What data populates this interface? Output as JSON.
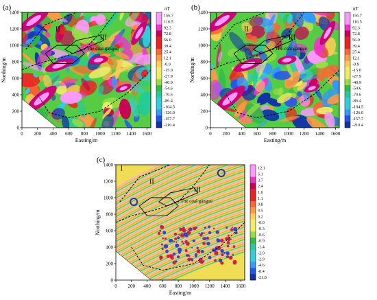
{
  "chart_data": [
    {
      "type": "heatmap",
      "panel_label": "(a)",
      "xlabel": "Easting/m",
      "ylabel": "Northing/m",
      "x_ticks": [
        0,
        200,
        400,
        600,
        800,
        1000,
        1200,
        1400,
        1600
      ],
      "y_ticks": [
        0,
        200,
        400,
        600,
        800,
        1000,
        1200,
        1400
      ],
      "xlim": [
        0,
        1650
      ],
      "ylim": [
        0,
        1400
      ],
      "colorbar_unit": "nT",
      "colorbar_labels": [
        "156.7",
        "116.5",
        "92.3",
        "72.8",
        "56.0",
        "39.4",
        "25.4",
        "12.1",
        "-0.9",
        "-15.0",
        "-27.9",
        "-40.9",
        "-54.6",
        "-70.6",
        "-86.4",
        "-104.5",
        "-126.0",
        "-157.7",
        "-210.4"
      ],
      "annotations": [
        "I",
        "II",
        "III",
        "The coal gangue"
      ],
      "legend": "none",
      "grid": false
    },
    {
      "type": "heatmap",
      "panel_label": "(b)",
      "xlabel": "Easting/m",
      "ylabel": "Northing/m",
      "x_ticks": [
        0,
        200,
        400,
        600,
        800,
        1000,
        1200,
        1400,
        1600
      ],
      "y_ticks": [
        0,
        200,
        400,
        600,
        800,
        1000,
        1200,
        1400
      ],
      "xlim": [
        0,
        1650
      ],
      "ylim": [
        0,
        1400
      ],
      "colorbar_unit": "nT",
      "colorbar_labels": [
        "156.7",
        "116.5",
        "92.3",
        "72.8",
        "56.0",
        "39.4",
        "25.4",
        "12.1",
        "-0.9",
        "-15.0",
        "-27.9",
        "-40.9",
        "-54.6",
        "-70.6",
        "-86.4",
        "-104.5",
        "-126.0",
        "-157.7",
        "-210.4"
      ],
      "annotations": [
        "I",
        "II",
        "III",
        "The coal gangue"
      ],
      "legend": "none",
      "grid": false
    },
    {
      "type": "heatmap",
      "panel_label": "(c)",
      "xlabel": "Easting/m",
      "ylabel": "Northing/m",
      "x_ticks": [
        0,
        200,
        400,
        600,
        800,
        1000,
        1200,
        1400,
        1600
      ],
      "y_ticks": [
        0,
        200,
        400,
        600,
        800,
        1000,
        1200,
        1400
      ],
      "xlim": [
        0,
        1650
      ],
      "ylim": [
        0,
        1400
      ],
      "colorbar_unit": "",
      "colorbar_labels": [
        "12.1",
        "6.1",
        "3.7",
        "2.4",
        "1.6",
        "1.1",
        "0.8",
        "0.5",
        "0.2",
        "-0.0",
        "-0.3",
        "-0.6",
        "-0.9",
        "-1.4",
        "-2.0",
        "-2.9",
        "-4.6",
        "-8.4",
        "-21.8"
      ],
      "annotations": [
        "I",
        "II",
        "III",
        "The coal gangue"
      ],
      "legend": "none",
      "grid": false
    }
  ],
  "colors": {
    "scale": [
      "#ff99ff",
      "#ee33cc",
      "#cc0055",
      "#ee2222",
      "#ff6633",
      "#ff9944",
      "#ffcc55",
      "#eeee66",
      "#99dd44",
      "#33bb44",
      "#22cc99",
      "#33ccdd",
      "#3399ff",
      "#2255ee",
      "#1133aa"
    ]
  }
}
